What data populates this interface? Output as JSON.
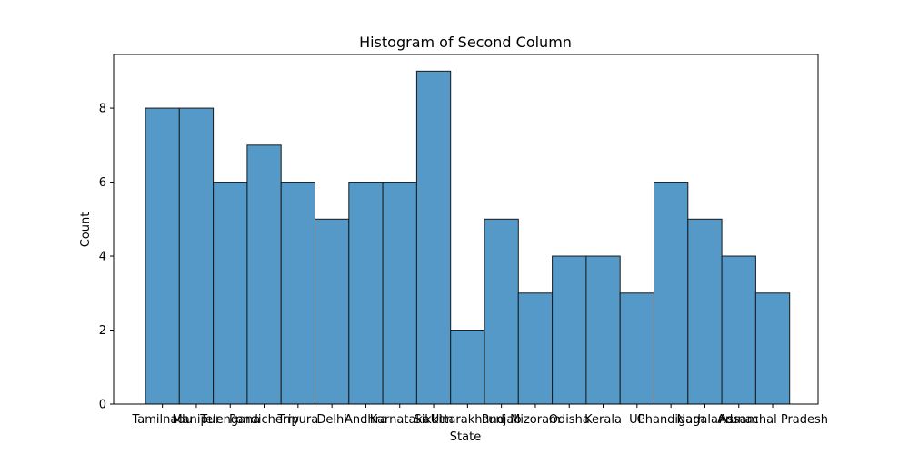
{
  "chart_data": {
    "type": "bar",
    "title": "Histogram of Second Column",
    "xlabel": "State",
    "ylabel": "Count",
    "categories": [
      "Tamilnadu",
      "Manipur",
      "Telengana",
      "Pondicherry",
      "Tripura",
      "Delhi",
      "Andhra",
      "Karnataka",
      "Sikkim",
      "Uttarakhand",
      "Punjab",
      "Mizoram",
      "Odisha",
      "Kerala",
      "UP",
      "Chandigarh",
      "Nagaland",
      "Assam",
      "Arunachal Pradesh"
    ],
    "values": [
      8,
      8,
      6,
      7,
      6,
      5,
      6,
      6,
      9,
      2,
      5,
      3,
      4,
      4,
      3,
      6,
      5,
      4,
      3
    ],
    "ylim": [
      0,
      9.45
    ],
    "yticks": [
      0,
      2,
      4,
      6,
      8
    ],
    "grid": false,
    "bar_color": "#5499c7",
    "edge_color": "#1a1a1a"
  }
}
